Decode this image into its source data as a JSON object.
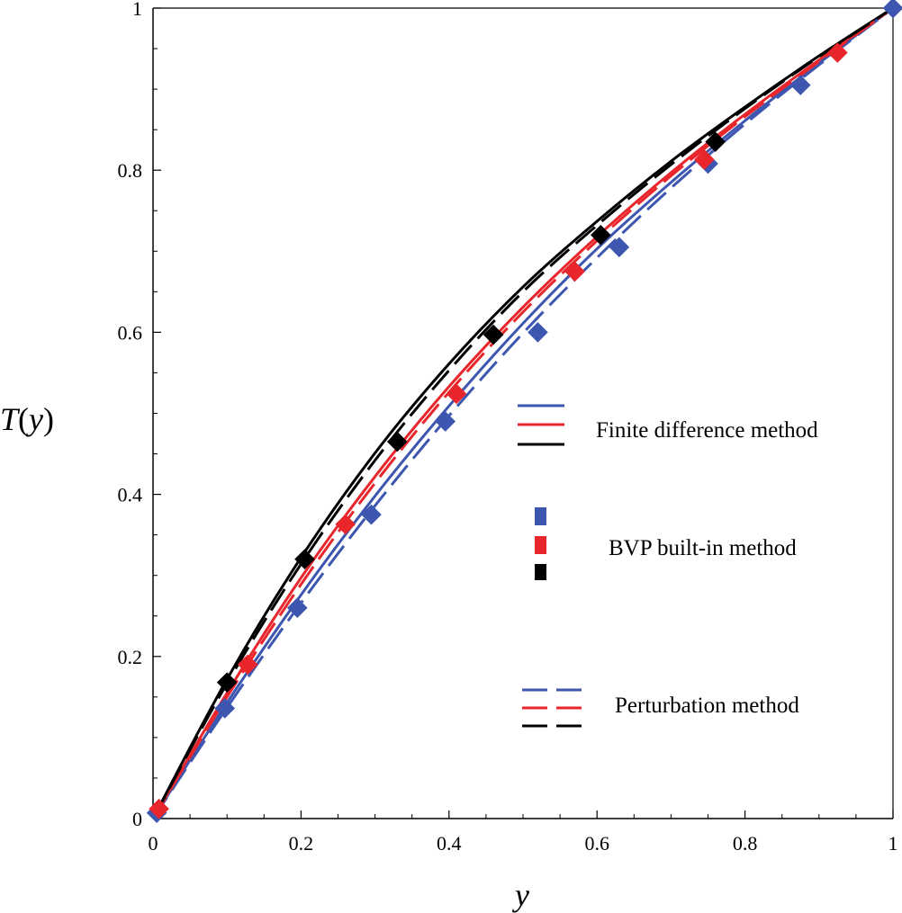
{
  "chart_data": {
    "type": "line",
    "title": "",
    "xlabel": "y",
    "ylabel_name": "T",
    "ylabel_arg": "y",
    "xlim": [
      0,
      1
    ],
    "ylim": [
      0,
      1
    ],
    "xticks": [
      0,
      0.2,
      0.4,
      0.6,
      0.8,
      1
    ],
    "yticks": [
      0,
      0.2,
      0.4,
      0.6,
      0.8,
      1
    ],
    "xtick_labels": [
      "0",
      "0.2",
      "0.4",
      "0.6",
      "0.8",
      "1"
    ],
    "ytick_labels": [
      "0",
      "0.2",
      "0.4",
      "0.6",
      "0.8",
      "1"
    ],
    "grid": false,
    "legend_position": "center-right",
    "legend": [
      {
        "label": "Finite difference method",
        "style": "solid"
      },
      {
        "label": "BVP built-in method",
        "style": "markers"
      },
      {
        "label": "Perturbation method",
        "style": "dashed"
      }
    ],
    "series": [
      {
        "name": "Finite difference method (case 1)",
        "color": "#3d56b0",
        "style": "solid",
        "x": [
          0,
          0.1,
          0.2,
          0.3,
          0.4,
          0.5,
          0.6,
          0.7,
          0.8,
          0.9,
          1.0
        ],
        "y": [
          0,
          0.143,
          0.276,
          0.398,
          0.509,
          0.611,
          0.703,
          0.785,
          0.861,
          0.932,
          1.0
        ]
      },
      {
        "name": "Finite difference method (case 2)",
        "color": "#e8262b",
        "style": "solid",
        "x": [
          0,
          0.1,
          0.2,
          0.3,
          0.4,
          0.5,
          0.6,
          0.7,
          0.8,
          0.9,
          1.0
        ],
        "y": [
          0,
          0.155,
          0.297,
          0.422,
          0.533,
          0.631,
          0.718,
          0.797,
          0.869,
          0.936,
          1.0
        ]
      },
      {
        "name": "Finite difference method (case 3)",
        "color": "#000000",
        "style": "solid",
        "x": [
          0,
          0.1,
          0.2,
          0.3,
          0.4,
          0.5,
          0.6,
          0.7,
          0.8,
          0.9,
          1.0
        ],
        "y": [
          0,
          0.172,
          0.322,
          0.451,
          0.561,
          0.656,
          0.737,
          0.811,
          0.878,
          0.941,
          1.0
        ]
      },
      {
        "name": "Perturbation method (case 1)",
        "color": "#3d56b0",
        "style": "dashed",
        "x": [
          0,
          0.1,
          0.2,
          0.3,
          0.4,
          0.5,
          0.6,
          0.7,
          0.8,
          0.9,
          1.0
        ],
        "y": [
          0,
          0.137,
          0.266,
          0.386,
          0.497,
          0.599,
          0.692,
          0.778,
          0.857,
          0.93,
          1.0
        ]
      },
      {
        "name": "Perturbation method (case 2)",
        "color": "#e8262b",
        "style": "dashed",
        "x": [
          0,
          0.1,
          0.2,
          0.3,
          0.4,
          0.5,
          0.6,
          0.7,
          0.8,
          0.9,
          1.0
        ],
        "y": [
          0,
          0.15,
          0.289,
          0.414,
          0.526,
          0.625,
          0.713,
          0.793,
          0.866,
          0.934,
          1.0
        ]
      },
      {
        "name": "Perturbation method (case 3)",
        "color": "#000000",
        "style": "dashed",
        "x": [
          0,
          0.1,
          0.2,
          0.3,
          0.4,
          0.5,
          0.6,
          0.7,
          0.8,
          0.9,
          1.0
        ],
        "y": [
          0,
          0.167,
          0.314,
          0.442,
          0.553,
          0.65,
          0.732,
          0.807,
          0.876,
          0.94,
          1.0
        ]
      }
    ],
    "markers": [
      {
        "name": "BVP built-in method (case 1)",
        "color": "#3d56b0",
        "x": [
          0.005,
          0.097,
          0.195,
          0.295,
          0.395,
          0.52,
          0.63,
          0.75,
          0.875,
          1.0
        ],
        "y": [
          0.007,
          0.136,
          0.26,
          0.375,
          0.49,
          0.6,
          0.705,
          0.808,
          0.905,
          1.0
        ]
      },
      {
        "name": "BVP built-in method (case 2)",
        "color": "#e8262b",
        "x": [
          0.008,
          0.128,
          0.26,
          0.41,
          0.57,
          0.745,
          0.925
        ],
        "y": [
          0.012,
          0.19,
          0.363,
          0.524,
          0.675,
          0.813,
          0.945
        ]
      },
      {
        "name": "BVP built-in method (case 3)",
        "color": "#000000",
        "x": [
          0.1,
          0.205,
          0.33,
          0.46,
          0.605,
          0.76
        ],
        "y": [
          0.168,
          0.32,
          0.465,
          0.597,
          0.72,
          0.835
        ]
      }
    ]
  }
}
